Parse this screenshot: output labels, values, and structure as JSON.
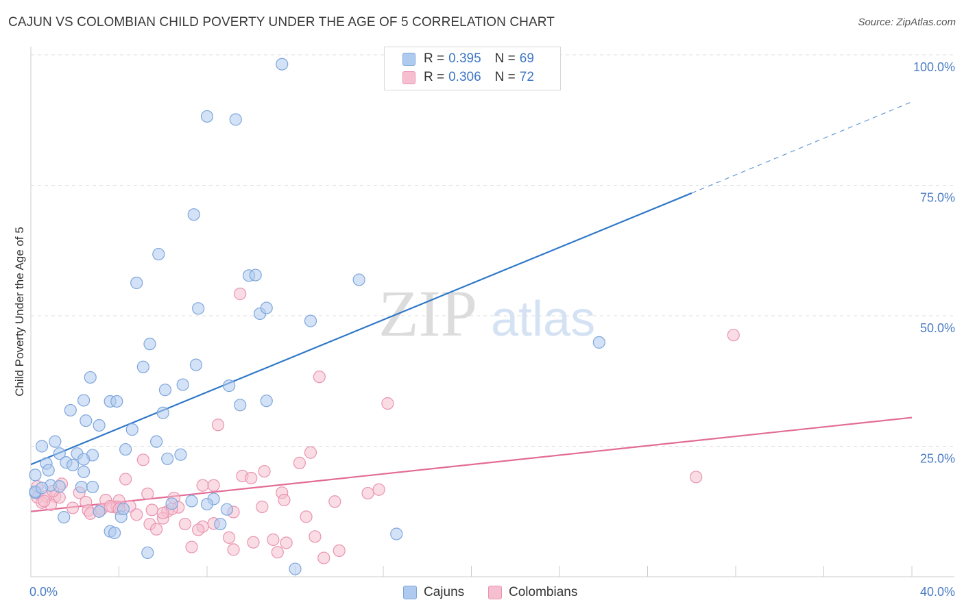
{
  "header": {
    "title": "CAJUN VS COLOMBIAN CHILD POVERTY UNDER THE AGE OF 5 CORRELATION CHART",
    "source": "Source: ZipAtlas.com"
  },
  "legend_top": {
    "rows": [
      {
        "r_label": "R =",
        "r_value": "0.395",
        "n_label": "N =",
        "n_value": "69"
      },
      {
        "r_label": "R =",
        "r_value": "0.306",
        "n_label": "N =",
        "n_value": "72"
      }
    ]
  },
  "legend_bottom": {
    "items": [
      {
        "label": "Cajuns"
      },
      {
        "label": "Colombians"
      }
    ]
  },
  "watermark": {
    "zip": "ZIP",
    "atlas": "atlas"
  },
  "colors": {
    "cajun_fill": "#aecbef",
    "cajun_stroke": "#7ea6db",
    "cajun_line": "#2f78c8",
    "colombian_fill": "#f6bfd0",
    "colombian_stroke": "#e993b1",
    "colombian_line": "#e26b96",
    "grid": "#dddddd",
    "tick_text": "#4a7cc4"
  },
  "chart_data": {
    "type": "scatter",
    "title": "CAJUN VS COLOMBIAN CHILD POVERTY UNDER THE AGE OF 5 CORRELATION CHART",
    "xlabel": "",
    "ylabel": "Child Poverty Under the Age of 5",
    "xlim": [
      0,
      40
    ],
    "ylim": [
      0,
      100
    ],
    "x_tick_labels": [
      {
        "value": 0,
        "label": "0.0%"
      },
      {
        "value": 40,
        "label": "40.0%"
      }
    ],
    "y_tick_labels": [
      {
        "value": 25,
        "label": "25.0%"
      },
      {
        "value": 50,
        "label": "50.0%"
      },
      {
        "value": 75,
        "label": "75.0%"
      },
      {
        "value": 100,
        "label": "100.0%"
      }
    ],
    "grid": "horizontal dashed",
    "legend_placement": "top-center and bottom-center",
    "series": [
      {
        "name": "Cajuns",
        "r": 0.395,
        "n": 69,
        "trend": {
          "x0": 0,
          "y0": 21.5,
          "x1": 30,
          "y1": 73.5,
          "dashed_to_x": 40,
          "dashed_to_y": 91
        },
        "points": [
          [
            11.4,
            98.2
          ],
          [
            8.0,
            88.2
          ],
          [
            9.3,
            87.6
          ],
          [
            7.4,
            69.4
          ],
          [
            5.8,
            61.8
          ],
          [
            4.8,
            56.3
          ],
          [
            9.9,
            57.7
          ],
          [
            10.2,
            57.8
          ],
          [
            14.9,
            56.9
          ],
          [
            7.6,
            51.4
          ],
          [
            10.4,
            50.4
          ],
          [
            10.7,
            51.5
          ],
          [
            12.7,
            49.0
          ],
          [
            25.8,
            44.9
          ],
          [
            5.4,
            44.6
          ],
          [
            5.1,
            40.2
          ],
          [
            2.7,
            38.2
          ],
          [
            7.5,
            40.6
          ],
          [
            9.0,
            36.6
          ],
          [
            6.1,
            35.8
          ],
          [
            6.9,
            36.8
          ],
          [
            2.4,
            33.8
          ],
          [
            3.6,
            33.6
          ],
          [
            10.7,
            33.7
          ],
          [
            9.5,
            32.9
          ],
          [
            3.9,
            33.6
          ],
          [
            6.0,
            31.4
          ],
          [
            2.5,
            29.9
          ],
          [
            1.8,
            31.9
          ],
          [
            3.1,
            29.0
          ],
          [
            4.6,
            28.2
          ],
          [
            0.5,
            25.0
          ],
          [
            1.1,
            25.9
          ],
          [
            5.7,
            25.9
          ],
          [
            4.3,
            24.4
          ],
          [
            1.3,
            23.6
          ],
          [
            2.1,
            23.6
          ],
          [
            2.8,
            23.3
          ],
          [
            6.2,
            22.6
          ],
          [
            6.8,
            23.4
          ],
          [
            0.7,
            21.7
          ],
          [
            1.6,
            21.9
          ],
          [
            1.9,
            21.4
          ],
          [
            2.4,
            22.5
          ],
          [
            0.8,
            20.4
          ],
          [
            2.4,
            20.1
          ],
          [
            0.9,
            17.5
          ],
          [
            1.3,
            17.3
          ],
          [
            2.3,
            17.2
          ],
          [
            2.8,
            17.2
          ],
          [
            0.2,
            16.1
          ],
          [
            0.2,
            16.3
          ],
          [
            8.3,
            14.9
          ],
          [
            6.4,
            14.0
          ],
          [
            8.0,
            13.9
          ],
          [
            8.9,
            12.9
          ],
          [
            3.1,
            12.5
          ],
          [
            4.1,
            11.5
          ],
          [
            1.5,
            11.4
          ],
          [
            8.6,
            10.1
          ],
          [
            3.6,
            8.7
          ],
          [
            3.8,
            8.4
          ],
          [
            16.6,
            8.2
          ],
          [
            5.3,
            4.6
          ],
          [
            12.0,
            1.5
          ],
          [
            0.2,
            19.5
          ],
          [
            0.5,
            17.0
          ],
          [
            7.3,
            14.5
          ],
          [
            4.2,
            13.0
          ]
        ]
      },
      {
        "name": "Colombians",
        "r": 0.306,
        "n": 72,
        "trend": {
          "x0": 0,
          "y0": 12.5,
          "x1": 40,
          "y1": 30.5
        },
        "points": [
          [
            9.5,
            54.2
          ],
          [
            31.9,
            46.3
          ],
          [
            13.1,
            38.3
          ],
          [
            16.2,
            33.2
          ],
          [
            8.5,
            29.1
          ],
          [
            12.7,
            23.8
          ],
          [
            5.1,
            22.4
          ],
          [
            12.2,
            21.8
          ],
          [
            10.6,
            20.2
          ],
          [
            9.6,
            19.3
          ],
          [
            10.0,
            18.9
          ],
          [
            30.2,
            19.1
          ],
          [
            4.3,
            18.7
          ],
          [
            1.4,
            17.8
          ],
          [
            7.8,
            17.5
          ],
          [
            8.3,
            17.5
          ],
          [
            15.8,
            16.7
          ],
          [
            15.3,
            16.0
          ],
          [
            5.3,
            15.9
          ],
          [
            11.4,
            16.1
          ],
          [
            2.2,
            16.1
          ],
          [
            1.1,
            15.4
          ],
          [
            0.3,
            15.2
          ],
          [
            1.3,
            15.2
          ],
          [
            0.7,
            15.4
          ],
          [
            6.5,
            15.1
          ],
          [
            11.5,
            14.7
          ],
          [
            13.8,
            14.4
          ],
          [
            4.0,
            14.6
          ],
          [
            3.4,
            14.7
          ],
          [
            2.5,
            14.3
          ],
          [
            3.7,
            13.4
          ],
          [
            4.5,
            13.5
          ],
          [
            6.7,
            13.3
          ],
          [
            10.5,
            13.4
          ],
          [
            0.9,
            13.8
          ],
          [
            0.5,
            14.2
          ],
          [
            1.9,
            13.2
          ],
          [
            3.9,
            13.4
          ],
          [
            3.2,
            12.9
          ],
          [
            2.6,
            12.7
          ],
          [
            5.5,
            12.8
          ],
          [
            6.2,
            12.5
          ],
          [
            6.4,
            13.0
          ],
          [
            9.2,
            12.4
          ],
          [
            4.8,
            11.9
          ],
          [
            2.7,
            12.1
          ],
          [
            6.0,
            11.2
          ],
          [
            6.0,
            12.2
          ],
          [
            3.1,
            12.5
          ],
          [
            12.5,
            11.5
          ],
          [
            3.6,
            13.5
          ],
          [
            7.0,
            10.1
          ],
          [
            5.4,
            10.1
          ],
          [
            8.3,
            10.2
          ],
          [
            7.8,
            9.6
          ],
          [
            7.6,
            9.0
          ],
          [
            5.7,
            9.1
          ],
          [
            12.9,
            7.7
          ],
          [
            9.0,
            7.5
          ],
          [
            11.0,
            7.1
          ],
          [
            10.1,
            6.6
          ],
          [
            11.6,
            6.5
          ],
          [
            7.3,
            5.7
          ],
          [
            9.2,
            5.2
          ],
          [
            14.0,
            5.0
          ],
          [
            11.2,
            4.7
          ],
          [
            13.3,
            3.6
          ],
          [
            0.3,
            17.3
          ],
          [
            0.6,
            14.5
          ],
          [
            1.0,
            16.4
          ],
          [
            4.0,
            13.0
          ]
        ]
      }
    ]
  }
}
